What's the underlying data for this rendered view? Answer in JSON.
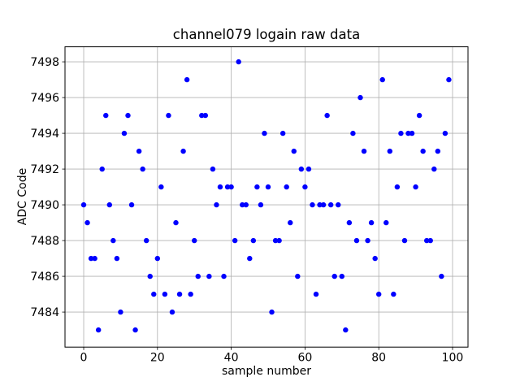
{
  "chart_data": {
    "type": "scatter",
    "title": "channel079 logain raw data",
    "xlabel": "sample number",
    "ylabel": "ADC Code",
    "marker_color": "#0000ff",
    "marker_radius": 3.2,
    "grid": true,
    "grid_color": "#b0b0b0",
    "spine_color": "#000000",
    "legend": null,
    "xlim": [
      -5.07,
      104.19
    ],
    "ylim": [
      7482.04,
      7498.84
    ],
    "xticks": [
      0,
      20,
      40,
      60,
      80,
      100
    ],
    "yticks": [
      7484,
      7486,
      7488,
      7490,
      7492,
      7494,
      7496,
      7498
    ],
    "x": [
      0,
      1,
      2,
      3,
      4,
      5,
      6,
      7,
      8,
      9,
      10,
      11,
      12,
      13,
      14,
      15,
      16,
      17,
      18,
      19,
      20,
      21,
      22,
      23,
      24,
      25,
      26,
      27,
      28,
      29,
      30,
      31,
      32,
      33,
      34,
      35,
      36,
      37,
      38,
      39,
      40,
      41,
      42,
      43,
      44,
      45,
      46,
      47,
      48,
      49,
      50,
      51,
      52,
      53,
      54,
      55,
      56,
      57,
      58,
      59,
      60,
      61,
      62,
      63,
      64,
      65,
      66,
      67,
      68,
      69,
      70,
      71,
      72,
      73,
      74,
      75,
      76,
      77,
      78,
      79,
      80,
      81,
      82,
      83,
      84,
      85,
      86,
      87,
      88,
      89,
      90,
      91,
      92,
      93,
      94,
      95,
      96,
      97,
      98,
      99
    ],
    "y": [
      7490,
      7489,
      7487,
      7487,
      7483,
      7492,
      7495,
      7490,
      7488,
      7487,
      7484,
      7494,
      7495,
      7490,
      7483,
      7493,
      7492,
      7488,
      7486,
      7485,
      7487,
      7491,
      7485,
      7495,
      7484,
      7489,
      7485,
      7493,
      7497,
      7485,
      7488,
      7486,
      7495,
      7495,
      7486,
      7492,
      7490,
      7491,
      7486,
      7491,
      7491,
      7488,
      7498,
      7490,
      7490,
      7487,
      7488,
      7491,
      7490,
      7494,
      7491,
      7484,
      7488,
      7488,
      7494,
      7491,
      7489,
      7493,
      7486,
      7492,
      7491,
      7492,
      7490,
      7485,
      7490,
      7490,
      7495,
      7490,
      7486,
      7490,
      7486,
      7483,
      7489,
      7494,
      7488,
      7496,
      7493,
      7488,
      7489,
      7487,
      7485,
      7497,
      7489,
      7493,
      7485,
      7491,
      7494,
      7488,
      7494,
      7494,
      7491,
      7495,
      7493,
      7488,
      7488,
      7492,
      7493,
      7486,
      7494,
      7497
    ]
  }
}
